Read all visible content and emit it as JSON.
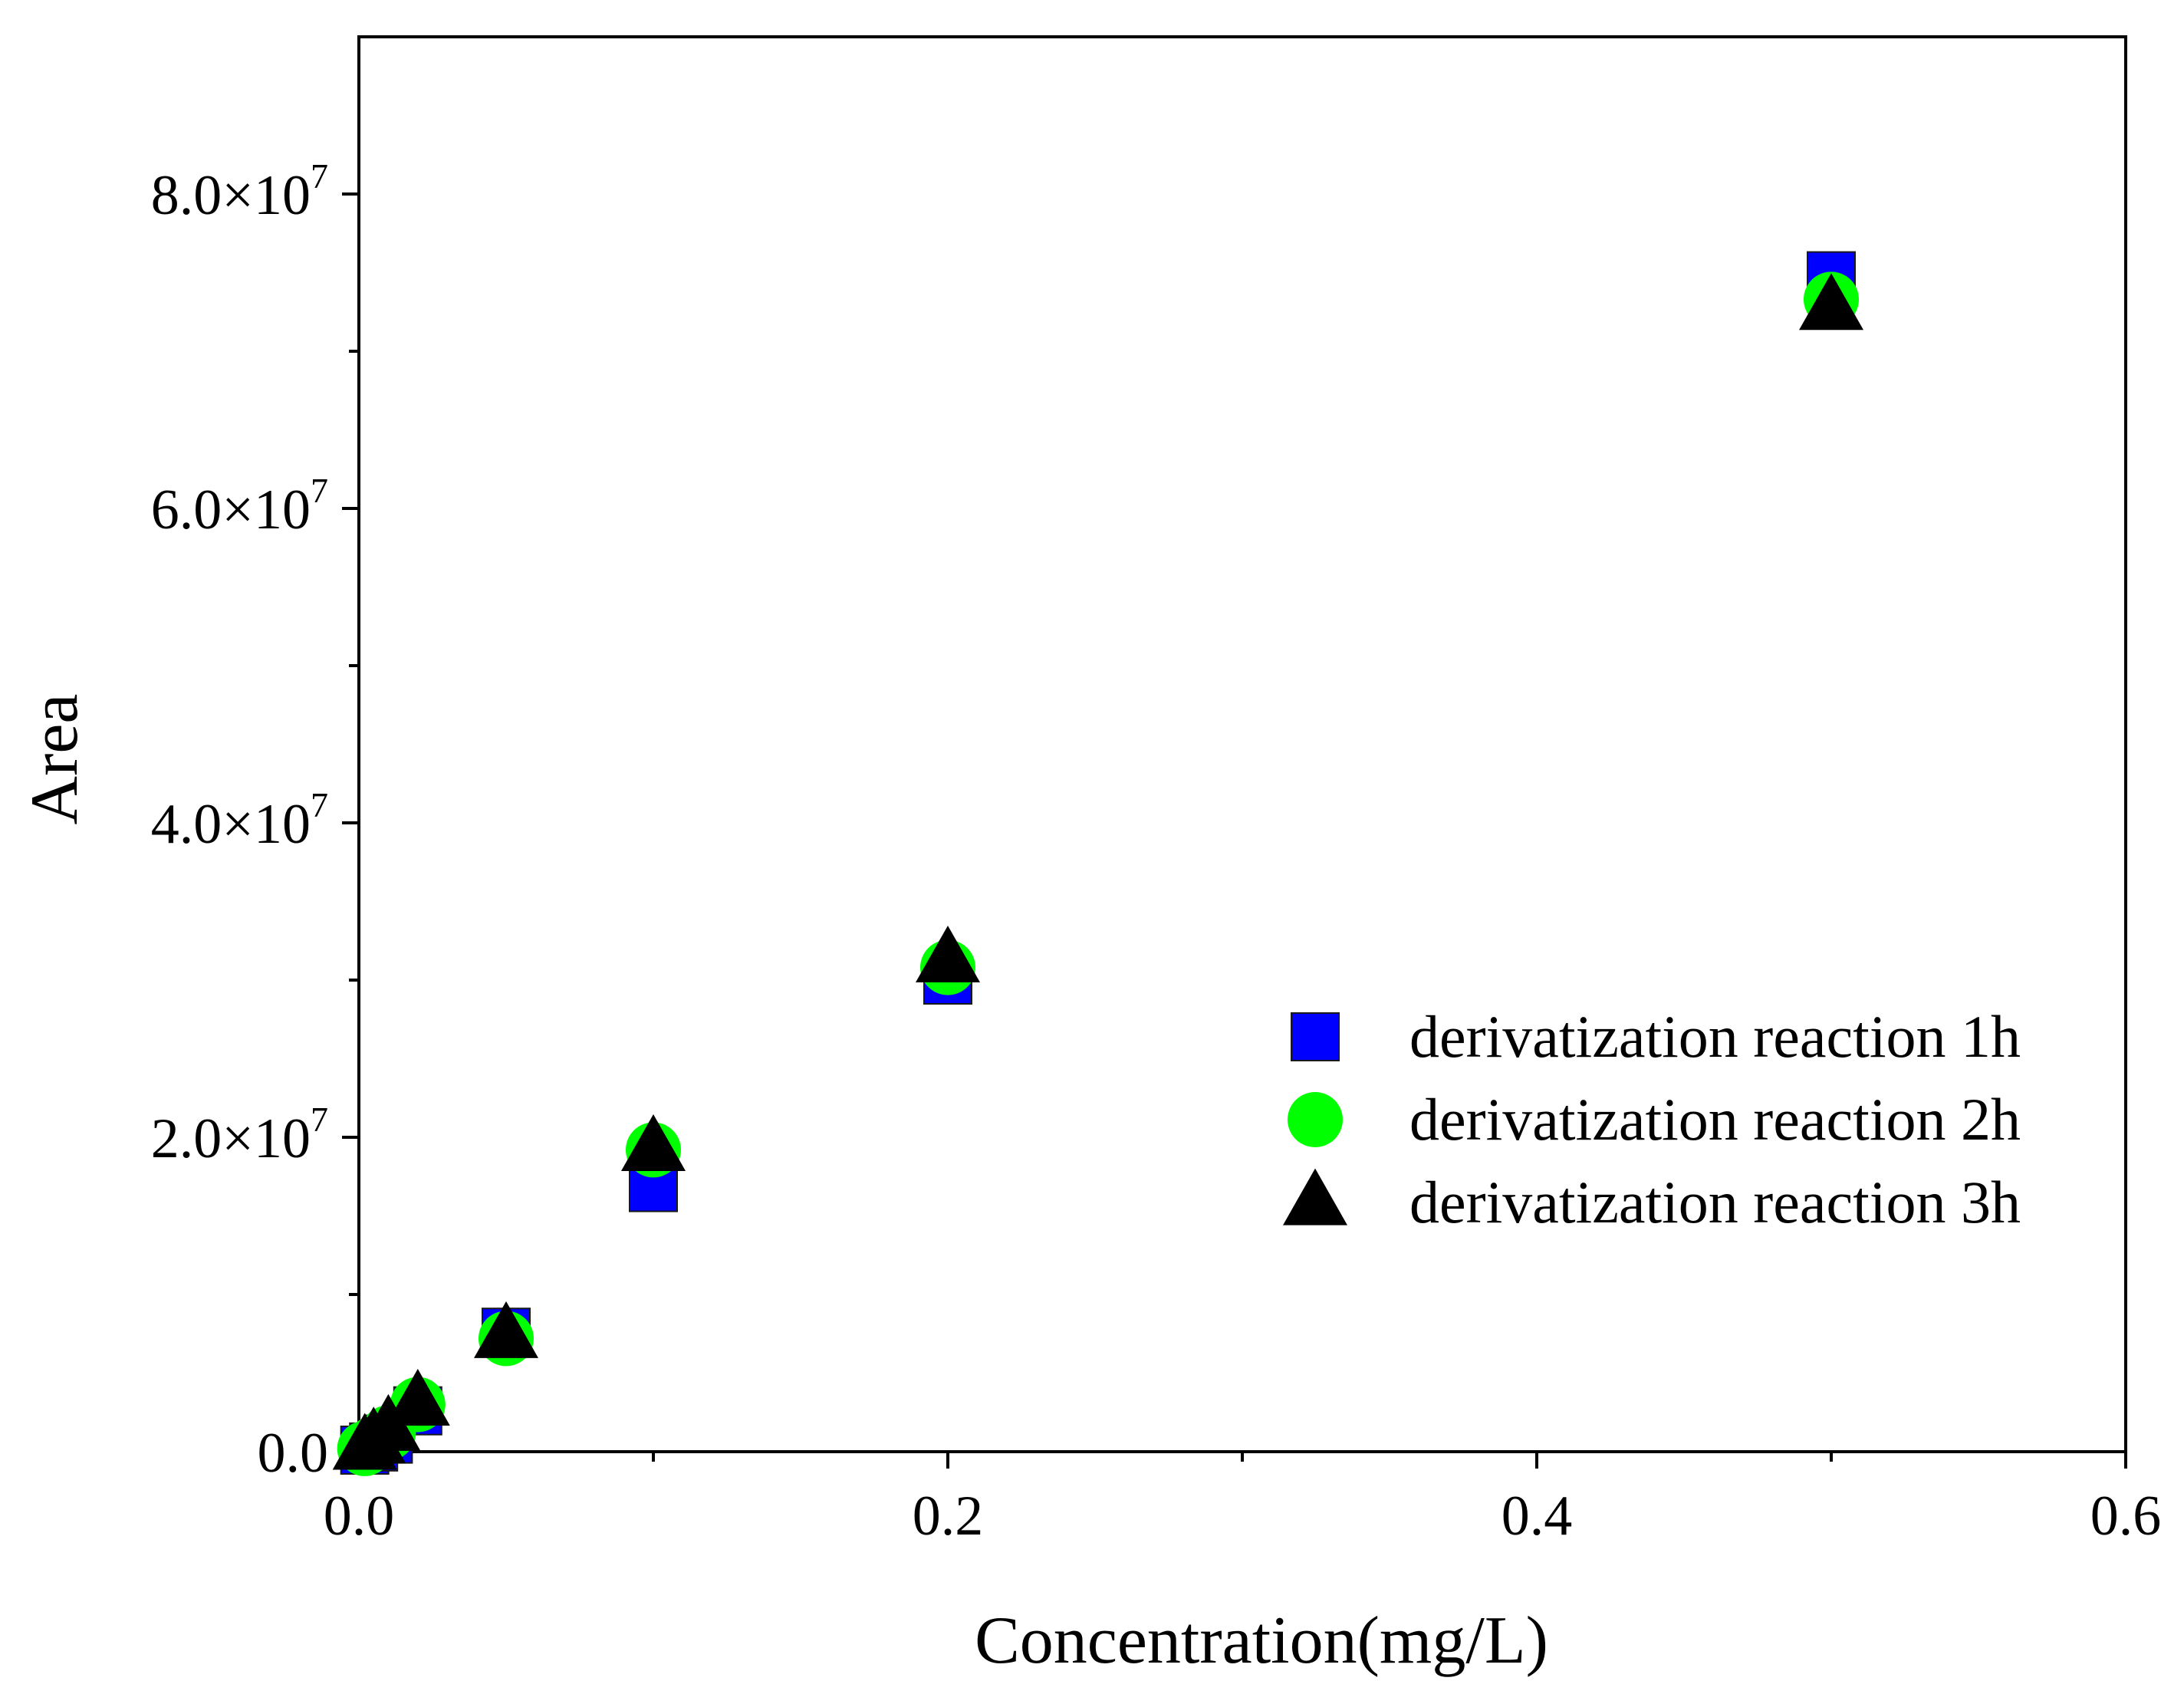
{
  "chart_data": {
    "type": "scatter",
    "title": "",
    "xlabel": "Concentration(mg/L)",
    "ylabel": "Area",
    "xlim": [
      0,
      0.6
    ],
    "ylim": [
      0,
      90000000
    ],
    "x_ticks": [
      0,
      0.2,
      0.4,
      0.6
    ],
    "x_tick_labels": [
      "0.0",
      "0.2",
      "0.4",
      "0.6"
    ],
    "y_ticks": [
      0,
      20000000,
      40000000,
      60000000,
      80000000
    ],
    "y_tick_labels": [
      {
        "base": "0.0",
        "exp": ""
      },
      {
        "base": "2.0×10",
        "exp": "7"
      },
      {
        "base": "4.0×10",
        "exp": "7"
      },
      {
        "base": "6.0×10",
        "exp": "7"
      },
      {
        "base": "8.0×10",
        "exp": "7"
      }
    ],
    "grid": false,
    "legend_position": "right-middle",
    "series": [
      {
        "name": "derivatization reaction 1h",
        "marker": "square",
        "color": "#0000ff",
        "x": [
          0.002,
          0.005,
          0.01,
          0.02,
          0.05,
          0.1,
          0.2,
          0.5
        ],
        "y": [
          100000,
          300000,
          800000,
          2600000,
          7600000,
          16800000,
          30000000,
          74800000
        ]
      },
      {
        "name": "derivatization reaction 2h",
        "marker": "circle",
        "color": "#00ff00",
        "x": [
          0.002,
          0.005,
          0.01,
          0.02,
          0.05,
          0.1,
          0.2,
          0.5
        ],
        "y": [
          200000,
          500000,
          1200000,
          3000000,
          7200000,
          19200000,
          30800000,
          73300000
        ]
      },
      {
        "name": "derivatization reaction 3h",
        "marker": "triangle",
        "color": "#000000",
        "x": [
          0.002,
          0.005,
          0.01,
          0.02,
          0.05,
          0.1,
          0.2,
          0.5
        ],
        "y": [
          300000,
          700000,
          1500000,
          3100000,
          7400000,
          19300000,
          31300000,
          72800000
        ]
      }
    ]
  }
}
